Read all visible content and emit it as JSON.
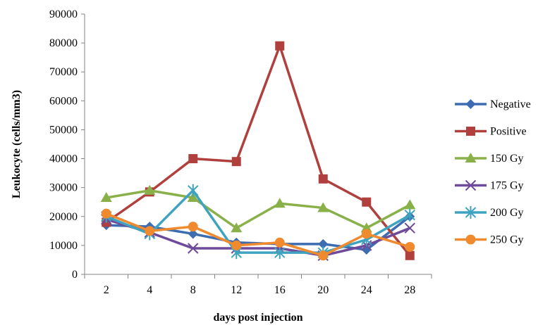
{
  "chart_data": {
    "type": "line",
    "title": "",
    "xlabel": "days post injection",
    "ylabel": "Leukocyte (cells/mm3)",
    "categories": [
      "2",
      "4",
      "8",
      "12",
      "16",
      "20",
      "24",
      "28"
    ],
    "ylim": [
      0,
      90000
    ],
    "yticks": [
      "0",
      "10000",
      "20000",
      "30000",
      "40000",
      "50000",
      "60000",
      "70000",
      "80000",
      "90000"
    ],
    "grid": false,
    "legend_position": "right",
    "series": [
      {
        "name": "Negative",
        "color": "#3D6CB0",
        "marker": "diamond",
        "values": [
          17000,
          16500,
          14000,
          11000,
          10500,
          10500,
          8500,
          20000
        ]
      },
      {
        "name": "Positive",
        "color": "#B0403D",
        "marker": "square",
        "values": [
          18000,
          28500,
          40000,
          39000,
          79000,
          33000,
          25000,
          6500
        ]
      },
      {
        "name": "150 Gy",
        "color": "#8AB04A",
        "marker": "triangle",
        "values": [
          26500,
          29000,
          26500,
          16000,
          24500,
          23000,
          16000,
          24000
        ]
      },
      {
        "name": "175 Gy",
        "color": "#6E4A9A",
        "marker": "x",
        "values": [
          19000,
          14500,
          9000,
          9000,
          9000,
          6500,
          10000,
          16000
        ]
      },
      {
        "name": "200 Gy",
        "color": "#3FA3C0",
        "marker": "star",
        "values": [
          20000,
          14000,
          29000,
          7500,
          7500,
          7500,
          12000,
          20500
        ]
      },
      {
        "name": "250 Gy",
        "color": "#F08A2E",
        "marker": "circle",
        "values": [
          21000,
          15000,
          16500,
          10000,
          11000,
          6500,
          14000,
          9500
        ]
      }
    ]
  }
}
